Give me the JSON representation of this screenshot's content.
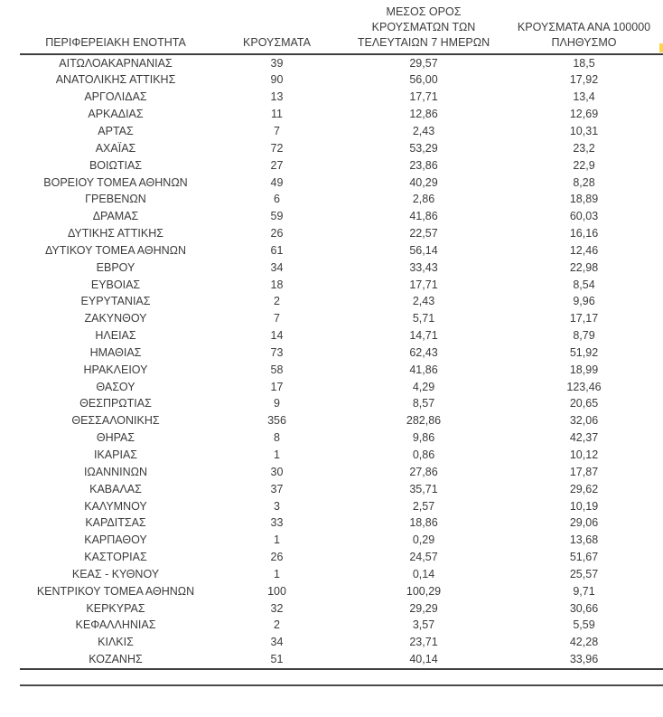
{
  "table": {
    "columns": [
      {
        "label": "ΠΕΡΙΦΕΡΕΙΑΚΗ ΕΝΟΤΗΤΑ"
      },
      {
        "label": "ΚΡΟΥΣΜΑΤΑ"
      },
      {
        "label": "ΜΕΣΟΣ ΟΡΟΣ\nΚΡΟΥΣΜΑΤΩΝ ΤΩΝ\nΤΕΛΕΥΤΑΙΩΝ 7 ΗΜΕΡΩΝ"
      },
      {
        "label": "ΚΡΟΥΣΜΑΤΑ ΑΝΑ 100000\nΠΛΗΘΥΣΜΟ"
      }
    ],
    "rows": [
      [
        "ΑΙΤΩΛΟΑΚΑΡΝΑΝΙΑΣ",
        "39",
        "29,57",
        "18,5"
      ],
      [
        "ΑΝΑΤΟΛΙΚΗΣ ΑΤΤΙΚΗΣ",
        "90",
        "56,00",
        "17,92"
      ],
      [
        "ΑΡΓΟΛΙΔΑΣ",
        "13",
        "17,71",
        "13,4"
      ],
      [
        "ΑΡΚΑΔΙΑΣ",
        "11",
        "12,86",
        "12,69"
      ],
      [
        "ΑΡΤΑΣ",
        "7",
        "2,43",
        "10,31"
      ],
      [
        "ΑΧΑΪΑΣ",
        "72",
        "53,29",
        "23,2"
      ],
      [
        "ΒΟΙΩΤΙΑΣ",
        "27",
        "23,86",
        "22,9"
      ],
      [
        "ΒΟΡΕΙΟΥ ΤΟΜΕΑ ΑΘΗΝΩΝ",
        "49",
        "40,29",
        "8,28"
      ],
      [
        "ΓΡΕΒΕΝΩΝ",
        "6",
        "2,86",
        "18,89"
      ],
      [
        "ΔΡΑΜΑΣ",
        "59",
        "41,86",
        "60,03"
      ],
      [
        "ΔΥΤΙΚΗΣ ΑΤΤΙΚΗΣ",
        "26",
        "22,57",
        "16,16"
      ],
      [
        "ΔΥΤΙΚΟΥ ΤΟΜΕΑ ΑΘΗΝΩΝ",
        "61",
        "56,14",
        "12,46"
      ],
      [
        "ΕΒΡΟΥ",
        "34",
        "33,43",
        "22,98"
      ],
      [
        "ΕΥΒΟΙΑΣ",
        "18",
        "17,71",
        "8,54"
      ],
      [
        "ΕΥΡΥΤΑΝΙΑΣ",
        "2",
        "2,43",
        "9,96"
      ],
      [
        "ΖΑΚΥΝΘΟΥ",
        "7",
        "5,71",
        "17,17"
      ],
      [
        "ΗΛΕΙΑΣ",
        "14",
        "14,71",
        "8,79"
      ],
      [
        "ΗΜΑΘΙΑΣ",
        "73",
        "62,43",
        "51,92"
      ],
      [
        "ΗΡΑΚΛΕΙΟΥ",
        "58",
        "41,86",
        "18,99"
      ],
      [
        "ΘΑΣΟΥ",
        "17",
        "4,29",
        "123,46"
      ],
      [
        "ΘΕΣΠΡΩΤΙΑΣ",
        "9",
        "8,57",
        "20,65"
      ],
      [
        "ΘΕΣΣΑΛΟΝΙΚΗΣ",
        "356",
        "282,86",
        "32,06"
      ],
      [
        "ΘΗΡΑΣ",
        "8",
        "9,86",
        "42,37"
      ],
      [
        "ΙΚΑΡΙΑΣ",
        "1",
        "0,86",
        "10,12"
      ],
      [
        "ΙΩΑΝΝΙΝΩΝ",
        "30",
        "27,86",
        "17,87"
      ],
      [
        "ΚΑΒΑΛΑΣ",
        "37",
        "35,71",
        "29,62"
      ],
      [
        "ΚΑΛΥΜΝΟΥ",
        "3",
        "2,57",
        "10,19"
      ],
      [
        "ΚΑΡΔΙΤΣΑΣ",
        "33",
        "18,86",
        "29,06"
      ],
      [
        "ΚΑΡΠΑΘΟΥ",
        "1",
        "0,29",
        "13,68"
      ],
      [
        "ΚΑΣΤΟΡΙΑΣ",
        "26",
        "24,57",
        "51,67"
      ],
      [
        "ΚΕΑΣ - ΚΥΘΝΟΥ",
        "1",
        "0,14",
        "25,57"
      ],
      [
        "ΚΕΝΤΡΙΚΟΥ ΤΟΜΕΑ ΑΘΗΝΩΝ",
        "100",
        "100,29",
        "9,71"
      ],
      [
        "ΚΕΡΚΥΡΑΣ",
        "32",
        "29,29",
        "30,66"
      ],
      [
        "ΚΕΦΑΛΛΗΝΙΑΣ",
        "2",
        "3,57",
        "5,59"
      ],
      [
        "ΚΙΛΚΙΣ",
        "34",
        "23,71",
        "42,28"
      ],
      [
        "ΚΟΖΑΝΗΣ",
        "51",
        "40,14",
        "33,96"
      ]
    ],
    "cell_names": [
      "region-name",
      "cases-value",
      "avg7-value",
      "per100k-value"
    ]
  },
  "colors": {
    "text": "#3b3b3b",
    "rule": "#3f3f3f",
    "highlight_fragment": "#ffd24a"
  },
  "chart_data": {
    "type": "table",
    "title": "",
    "columns": [
      "ΠΕΡΙΦΕΡΕΙΑΚΗ ΕΝΟΤΗΤΑ",
      "ΚΡΟΥΣΜΑΤΑ",
      "ΜΕΣΟΣ ΟΡΟΣ ΚΡΟΥΣΜΑΤΩΝ ΤΩΝ ΤΕΛΕΥΤΑΙΩΝ 7 ΗΜΕΡΩΝ",
      "ΚΡΟΥΣΜΑΤΑ ΑΝΑ 100000 ΠΛΗΘΥΣΜΟ"
    ]
  }
}
